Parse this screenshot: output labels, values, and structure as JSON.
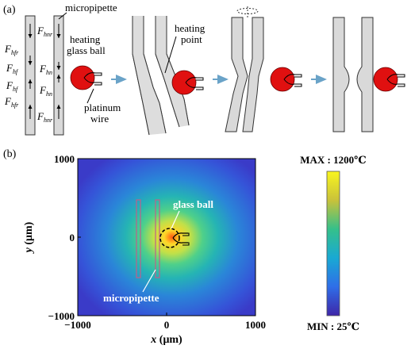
{
  "panel_a": {
    "label": "(a)",
    "micropipette": "micropipette",
    "heating": "heating",
    "glass_ball": "glass ball",
    "platinum": "platinum",
    "wire": "wire",
    "heating_word": "heating",
    "point_word": "point",
    "forces_outer": [
      {
        "main": "F",
        "sub": "hfr"
      },
      {
        "main": "F",
        "sub": "hf"
      },
      {
        "main": "F",
        "sub": "hf"
      },
      {
        "main": "F",
        "sub": "hfr"
      }
    ],
    "forces_inner": [
      {
        "main": "F",
        "sub": "hnr"
      },
      {
        "main": "F",
        "sub": "hn"
      },
      {
        "main": "F",
        "sub": "hn"
      },
      {
        "main": "F",
        "sub": "hnr"
      }
    ]
  },
  "panel_b": {
    "label": "(b)",
    "colorbar_max": "MAX : 1200℃",
    "colorbar_min": "MIN : 25℃",
    "annotation_ball": "glass ball",
    "annotation_pipette": "micropipette",
    "x_axis": {
      "var": "x",
      "unit": "(μm)",
      "ticks": [
        "−1000",
        "0",
        "1000"
      ]
    },
    "y_axis": {
      "var": "y",
      "unit": "(μm)",
      "ticks": [
        "1000",
        "0",
        "−1000"
      ]
    },
    "colors": {
      "low": "#3b3bd6",
      "mid": "#21a3b3",
      "high": "#f5d62a",
      "hot": "#ff5a10"
    }
  }
}
